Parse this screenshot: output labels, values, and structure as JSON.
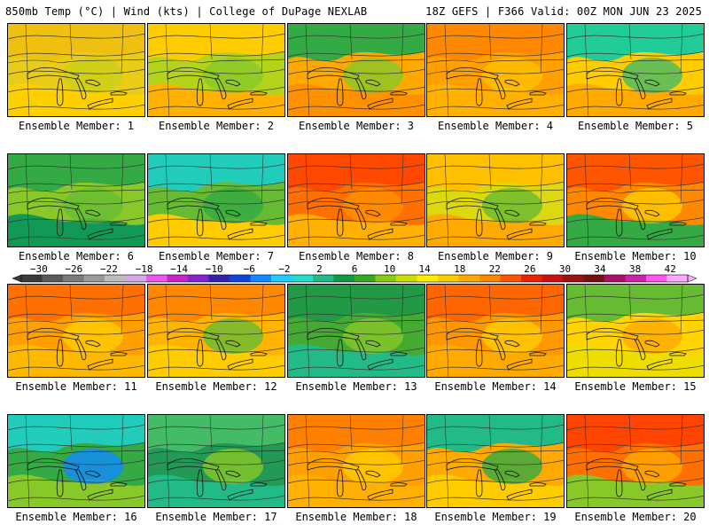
{
  "header": {
    "left": "850mb Temp (°C) | Wind (kts) | College of DuPage NEXLAB",
    "right": "18Z GEFS | F366 Valid: 00Z MON JUN 23 2025"
  },
  "colorbar": {
    "ticks": [
      "−30",
      "−26",
      "−22",
      "−18",
      "−14",
      "−10",
      "−6",
      "−2",
      "2",
      "6",
      "10",
      "14",
      "18",
      "22",
      "26",
      "30",
      "34",
      "38",
      "42"
    ],
    "tick_values": [
      -30,
      -26,
      -22,
      -18,
      -14,
      -10,
      -6,
      -2,
      2,
      6,
      10,
      14,
      18,
      22,
      26,
      30,
      34,
      38,
      42
    ],
    "colors": [
      "#3a3a3a",
      "#5a5a5a",
      "#7a7a7a",
      "#9a9a9a",
      "#bdbdbd",
      "#d7a8e8",
      "#ee55ee",
      "#cc22cc",
      "#8822cc",
      "#3322aa",
      "#1144dd",
      "#1188ff",
      "#22ccff",
      "#22ddcc",
      "#22bb88",
      "#119944",
      "#33aa22",
      "#88cc11",
      "#ccdd00",
      "#ffee00",
      "#ffcc00",
      "#ffaa00",
      "#ff8800",
      "#ff5500",
      "#ee2200",
      "#cc1111",
      "#991111",
      "#771111",
      "#aa1166",
      "#cc22aa",
      "#ff55ee",
      "#ffaaff"
    ]
  },
  "panels": [
    {
      "label": "Ensemble Member: 1",
      "colors": [
        "#e8cc18",
        "#f0c010",
        "#ccd018",
        "#ffd000"
      ]
    },
    {
      "label": "Ensemble Member: 2",
      "colors": [
        "#b4d41c",
        "#ffcc00",
        "#88c828",
        "#ffb000"
      ]
    },
    {
      "label": "Ensemble Member: 3",
      "colors": [
        "#ffa800",
        "#33aa44",
        "#88c828",
        "#ff9000"
      ]
    },
    {
      "label": "Ensemble Member: 4",
      "colors": [
        "#ffa000",
        "#ff8800",
        "#ffc000",
        "#ffb000"
      ]
    },
    {
      "label": "Ensemble Member: 5",
      "colors": [
        "#ffcc00",
        "#22cc99",
        "#44bb66",
        "#ffaa00"
      ]
    },
    {
      "label": "Ensemble Member: 6",
      "colors": [
        "#88c828",
        "#33aa44",
        "#66bb33",
        "#119955"
      ]
    },
    {
      "label": "Ensemble Member: 7",
      "colors": [
        "#66bb33",
        "#22ccbb",
        "#33aa44",
        "#ffcc00"
      ]
    },
    {
      "label": "Ensemble Member: 8",
      "colors": [
        "#ff7000",
        "#ff4800",
        "#ff9000",
        "#ffb000"
      ]
    },
    {
      "label": "Ensemble Member: 9",
      "colors": [
        "#ddd810",
        "#ffc000",
        "#66bb33",
        "#ffaa00"
      ]
    },
    {
      "label": "Ensemble Member: 10",
      "colors": [
        "#ff8800",
        "#ff5500",
        "#ffcc00",
        "#33aa44"
      ]
    },
    {
      "label": "Ensemble Member: 11",
      "colors": [
        "#ffa000",
        "#ff7000",
        "#ffcc00",
        "#ffb800"
      ]
    },
    {
      "label": "Ensemble Member: 12",
      "colors": [
        "#ffb400",
        "#ff8800",
        "#66bb33",
        "#ffcc00"
      ]
    },
    {
      "label": "Ensemble Member: 13",
      "colors": [
        "#44aa33",
        "#229944",
        "#88c828",
        "#22bb88"
      ]
    },
    {
      "label": "Ensemble Member: 14",
      "colors": [
        "#ff9800",
        "#ff6600",
        "#ffcc00",
        "#ffaa00"
      ]
    },
    {
      "label": "Ensemble Member: 15",
      "colors": [
        "#ffd400",
        "#66bb33",
        "#ffaa00",
        "#eedd00"
      ]
    },
    {
      "label": "Ensemble Member: 16",
      "colors": [
        "#33aa44",
        "#22ccbb",
        "#1188ff",
        "#88c828"
      ]
    },
    {
      "label": "Ensemble Member: 17",
      "colors": [
        "#229955",
        "#44bb66",
        "#88c828",
        "#22bb88"
      ]
    },
    {
      "label": "Ensemble Member: 18",
      "colors": [
        "#ffa000",
        "#ff8000",
        "#ffcc00",
        "#ffb000"
      ]
    },
    {
      "label": "Ensemble Member: 19",
      "colors": [
        "#ffaa00",
        "#22bb88",
        "#33aa44",
        "#ffcc00"
      ]
    },
    {
      "label": "Ensemble Member: 20",
      "colors": [
        "#ff7000",
        "#ff4400",
        "#ffaa00",
        "#88c828"
      ]
    }
  ]
}
